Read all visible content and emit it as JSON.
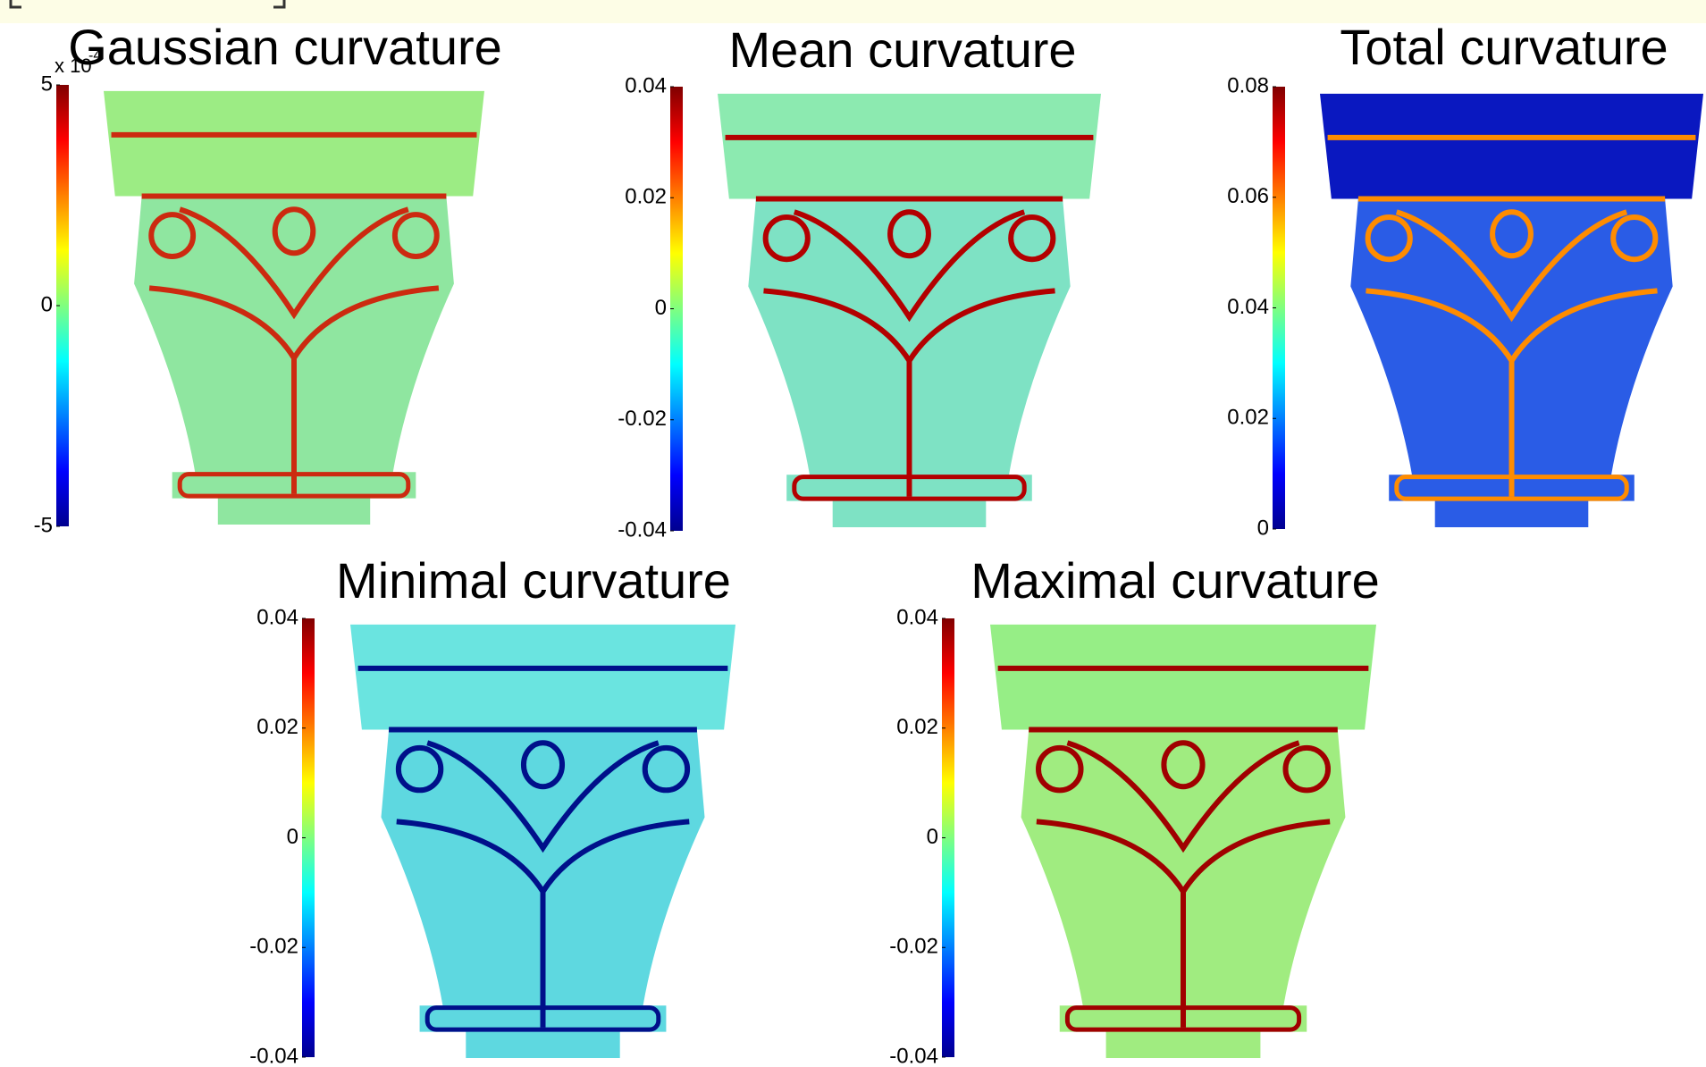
{
  "chart_data": [
    {
      "type": "colormap",
      "title": "Gaussian curvature",
      "colormap": "jet",
      "multiplier": "x 10",
      "multiplier_exponent": "-4",
      "ylim": [
        -5,
        5
      ],
      "yticks": [
        -5,
        0,
        5
      ]
    },
    {
      "type": "colormap",
      "title": "Mean curvature",
      "colormap": "jet",
      "ylim": [
        -0.04,
        0.04
      ],
      "yticks": [
        -0.04,
        -0.02,
        0,
        0.02,
        0.04
      ]
    },
    {
      "type": "colormap",
      "title": "Total curvature",
      "colormap": "jet",
      "ylim": [
        0,
        0.08
      ],
      "yticks": [
        0,
        0.02,
        0.04,
        0.06,
        0.08
      ]
    },
    {
      "type": "colormap",
      "title": "Minimal curvature",
      "colormap": "jet",
      "ylim": [
        -0.04,
        0.04
      ],
      "yticks": [
        -0.04,
        -0.02,
        0,
        0.02,
        0.04
      ]
    },
    {
      "type": "colormap",
      "title": "Maximal curvature",
      "colormap": "jet",
      "ylim": [
        -0.04,
        0.04
      ],
      "yticks": [
        -0.04,
        -0.02,
        0,
        0.02,
        0.04
      ]
    }
  ]
}
